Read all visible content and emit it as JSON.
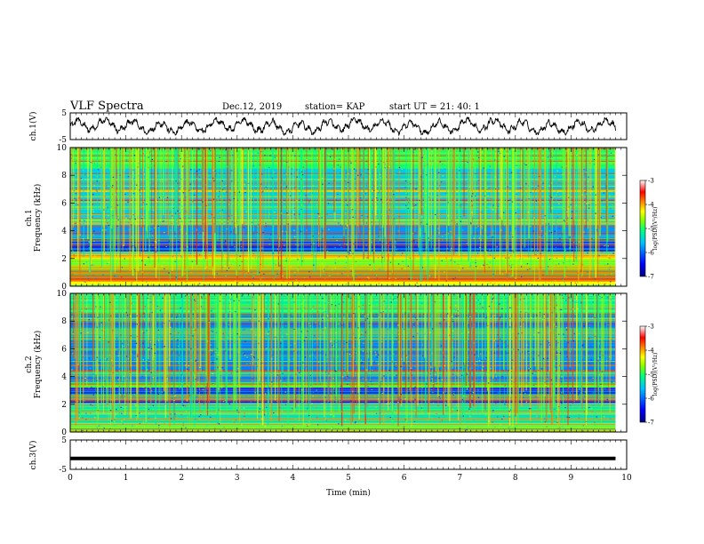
{
  "header": {
    "title": "VLF Spectra",
    "date": "Dec.12, 2019",
    "station": "station= KAP",
    "start": "start  UT =   21: 40: 1"
  },
  "chart_data": [
    {
      "type": "line",
      "name": "ch1-waveform",
      "ylabel": "ch.1(V)",
      "ylim": [
        -5,
        5
      ],
      "ytick_labels": [
        "5",
        "-5"
      ],
      "xlim": [
        0,
        10
      ],
      "x_end": 9.8,
      "description_values": {
        "amplitude_range_V": [
          -3,
          3
        ],
        "dominant_period_min": 0.5
      },
      "color": "#000000"
    },
    {
      "type": "heatmap",
      "name": "ch1-spectrogram",
      "ylabel": "ch.1\nFrequency  (kHz)",
      "ylim": [
        0,
        10
      ],
      "ytick_labels": [
        "0",
        "2",
        "4",
        "6",
        "8",
        "10"
      ],
      "xlim": [
        0,
        10
      ],
      "x_end": 9.8,
      "colorbar": {
        "label": "log(PSD)(V²/Hz)",
        "range": [
          -7,
          -3
        ],
        "tick_labels": [
          "-3",
          "-4",
          "-5",
          "-6",
          "-7"
        ],
        "colors": [
          "#000080",
          "#0000ff",
          "#00c0ff",
          "#00ff80",
          "#80ff00",
          "#ffff00",
          "#ff8000",
          "#ff0000",
          "#ffffff"
        ]
      },
      "bands_khz": [
        {
          "from": 0,
          "to": 0.4,
          "level": -4.3
        },
        {
          "from": 0.4,
          "to": 1.2,
          "level": -3.7
        },
        {
          "from": 1.2,
          "to": 2.0,
          "level": -4.6
        },
        {
          "from": 2.0,
          "to": 2.4,
          "level": -4.2
        },
        {
          "from": 2.4,
          "to": 3.4,
          "level": -6.3
        },
        {
          "from": 3.4,
          "to": 5.0,
          "level": -5.8
        },
        {
          "from": 5.0,
          "to": 8.5,
          "level": -5.5
        },
        {
          "from": 8.5,
          "to": 10,
          "level": -5.0
        }
      ]
    },
    {
      "type": "heatmap",
      "name": "ch2-spectrogram",
      "ylabel": "ch.2\nFrequency  (kHz)",
      "ylim": [
        0,
        10
      ],
      "ytick_labels": [
        "0",
        "2",
        "4",
        "6",
        "8",
        "10"
      ],
      "xlim": [
        0,
        10
      ],
      "x_end": 9.8,
      "colorbar": {
        "label": "log(PSD)(V²/Hz)",
        "range": [
          -7,
          -3
        ],
        "tick_labels": [
          "-3",
          "-4",
          "-5",
          "-6",
          "-7"
        ],
        "colors": [
          "#000080",
          "#0000ff",
          "#00c0ff",
          "#00ff80",
          "#80ff00",
          "#ffff00",
          "#ff8000",
          "#ff0000",
          "#ffffff"
        ]
      },
      "bands_khz": [
        {
          "from": 0,
          "to": 0.5,
          "level": -4.6
        },
        {
          "from": 0.5,
          "to": 2.0,
          "level": -5.3
        },
        {
          "from": 2.0,
          "to": 3.2,
          "level": -6.4
        },
        {
          "from": 3.2,
          "to": 3.6,
          "level": -4.9
        },
        {
          "from": 3.6,
          "to": 8.5,
          "level": -5.9
        },
        {
          "from": 8.5,
          "to": 10,
          "level": -5.2
        }
      ]
    },
    {
      "type": "line",
      "name": "ch3-waveform",
      "ylabel": "ch.3(V)",
      "ylim": [
        -5,
        5
      ],
      "ytick_labels": [
        "5",
        "-5"
      ],
      "xlim": [
        0,
        10
      ],
      "x_end": 9.8,
      "xlabel": "Time  (min)",
      "xtick_labels": [
        "0",
        "1",
        "2",
        "3",
        "4",
        "5",
        "6",
        "7",
        "8",
        "9",
        "10"
      ],
      "constant_value_V": -1.3,
      "color": "#000000"
    }
  ]
}
